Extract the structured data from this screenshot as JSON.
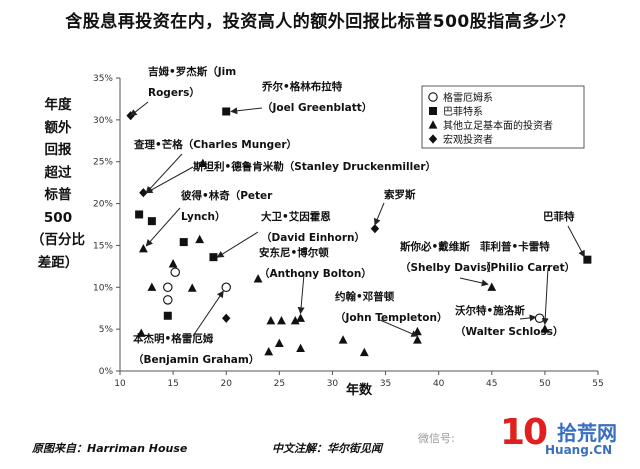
{
  "title": "含股息再投资在内，投资高人的额外回报比标普500股指高多少？",
  "ylabel_lines": [
    "年度",
    "额外",
    "回报",
    "超过",
    "标普",
    "500",
    "（百分比",
    "差距）"
  ],
  "source": "原图来自：Harriman House",
  "cn_note": "中文注解：华尔街见闻",
  "watermark": {
    "wechat": "微信号: ",
    "num": "10",
    "name": "拾荒网",
    "url": "Huang.CN"
  },
  "colors": {
    "marker": "#111111",
    "arrow": "#222222",
    "axis": "#555555",
    "watermark_red": "#e0201f",
    "watermark_blue": "#3a6fc0"
  },
  "chart_data": {
    "type": "scatter",
    "title": "含股息再投资在内，投资高人的额外回报比标普500股指高多少？",
    "xlabel": "年数",
    "ylabel": "年度额外回报超过标普500（百分比差距）",
    "xlim": [
      10,
      55
    ],
    "ylim": [
      0,
      35
    ],
    "xticks": [
      10,
      15,
      20,
      25,
      30,
      35,
      40,
      45,
      50,
      55
    ],
    "yticks": [
      "0%",
      "5%",
      "10%",
      "15%",
      "20%",
      "25%",
      "30%",
      "35%"
    ],
    "grid": false,
    "legend_position": "top-right",
    "legend": [
      {
        "label": "格雷厄姆系",
        "marker": "circle"
      },
      {
        "label": "巴菲特系",
        "marker": "square"
      },
      {
        "label": "其他立足基本面的投资者",
        "marker": "triangle"
      },
      {
        "label": "宏观投资者",
        "marker": "diamond"
      }
    ],
    "series": [
      {
        "name": "格雷厄姆系",
        "marker": "circle",
        "points": [
          [
            15.2,
            11.8
          ],
          [
            14.5,
            8.5
          ],
          [
            14.5,
            10.0
          ],
          [
            20.0,
            10.0
          ],
          [
            49.5,
            6.3
          ]
        ]
      },
      {
        "name": "巴菲特系",
        "marker": "square",
        "points": [
          [
            20.0,
            31.0
          ],
          [
            11.8,
            18.7
          ],
          [
            13.0,
            17.9
          ],
          [
            16.0,
            15.4
          ],
          [
            18.8,
            13.6
          ],
          [
            14.5,
            6.6
          ],
          [
            54.0,
            13.3
          ]
        ]
      },
      {
        "name": "其他立足基本面的投资者",
        "marker": "triangle",
        "points": [
          [
            12.2,
            14.6
          ],
          [
            17.8,
            24.8
          ],
          [
            17.5,
            15.7
          ],
          [
            15.0,
            12.8
          ],
          [
            16.8,
            9.9
          ],
          [
            13.0,
            10.0
          ],
          [
            12.0,
            4.5
          ],
          [
            23.0,
            11.0
          ],
          [
            24.2,
            6.0
          ],
          [
            25.2,
            6.0
          ],
          [
            27.0,
            6.3
          ],
          [
            26.5,
            6.0
          ],
          [
            24.0,
            2.3
          ],
          [
            25.0,
            3.3
          ],
          [
            27.0,
            2.7
          ],
          [
            31.0,
            3.7
          ],
          [
            33.0,
            2.2
          ],
          [
            38.0,
            3.7
          ],
          [
            38.0,
            4.7
          ],
          [
            45.0,
            10.0
          ],
          [
            50.0,
            5.0
          ]
        ]
      },
      {
        "name": "宏观投资者",
        "marker": "diamond",
        "points": [
          [
            11.0,
            30.5
          ],
          [
            12.2,
            21.3
          ],
          [
            20.0,
            6.3
          ],
          [
            34.0,
            17.0
          ]
        ]
      }
    ],
    "annotations": [
      {
        "lines": [
          "吉姆•罗杰斯（Jim",
          "Rogers）"
        ]
      },
      {
        "lines": [
          "乔尔•格林布拉特",
          "（Joel Greenblatt）"
        ]
      },
      {
        "lines": [
          "查理•芒格（Charles Munger）"
        ]
      },
      {
        "lines": [
          "斯坦利•德鲁肯米勒（Stanley Druckenmiller）"
        ]
      },
      {
        "lines": [
          "彼得•林奇（Peter",
          "Lynch）"
        ]
      },
      {
        "lines": [
          "大卫•艾因霍恩",
          "（David Einhorn）"
        ]
      },
      {
        "lines": [
          "安东尼•博尔顿",
          "（Anthony Bolton）"
        ]
      },
      {
        "lines": [
          "索罗斯"
        ]
      },
      {
        "lines": [
          "斯你必•戴维斯",
          "（Shelby Davis）"
        ]
      },
      {
        "lines": [
          "菲利普•卡雷特",
          "（Philio Carret）"
        ]
      },
      {
        "lines": [
          "巴菲特"
        ]
      },
      {
        "lines": [
          "约翰•邓普顿",
          "（John Templeton）"
        ]
      },
      {
        "lines": [
          "沃尔特•施洛斯",
          "（Walter Schloss）"
        ]
      },
      {
        "lines": [
          "本杰明•格雷厄姆",
          "（Benjamin Graham）"
        ]
      }
    ]
  }
}
